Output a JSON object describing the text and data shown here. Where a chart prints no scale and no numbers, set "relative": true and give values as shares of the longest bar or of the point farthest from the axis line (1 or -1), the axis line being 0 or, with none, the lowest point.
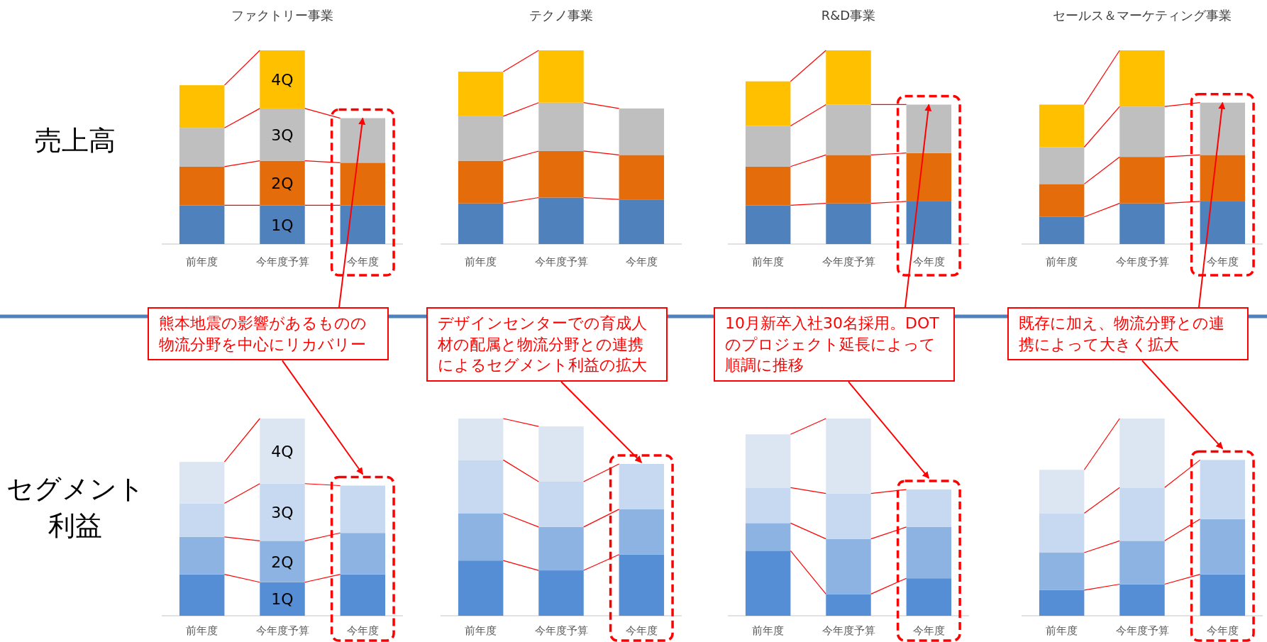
{
  "chart_data": [
    {
      "type": "bar",
      "stacked": true,
      "relative": true,
      "title": "ファクトリー事業",
      "ylabel": "売上高",
      "categories": [
        "前年度",
        "今年度予算",
        "今年度"
      ],
      "series": [
        {
          "name": "1Q",
          "color": "#4f81bd",
          "values": [
            0.2,
            0.2,
            0.2
          ]
        },
        {
          "name": "2Q",
          "color": "#e46c0a",
          "values": [
            0.2,
            0.23,
            0.22
          ]
        },
        {
          "name": "3Q",
          "color": "#bfbfbf",
          "values": [
            0.2,
            0.27,
            0.23
          ]
        },
        {
          "name": "4Q",
          "color": "#ffc000",
          "values": [
            0.22,
            0.3,
            null
          ]
        }
      ],
      "annotations": [
        {
          "text": "熊本地震の影響があるものの物流分野を中心にリカバリー",
          "x": "今年度",
          "y": 0.65
        }
      ]
    },
    {
      "type": "bar",
      "stacked": true,
      "relative": true,
      "title": "テクノ事業",
      "categories": [
        "前年度",
        "今年度予算",
        "今年度"
      ],
      "series": [
        {
          "color": "#4f81bd",
          "values": [
            0.21,
            0.24,
            0.23
          ]
        },
        {
          "color": "#e46c0a",
          "values": [
            0.22,
            0.24,
            0.23
          ]
        },
        {
          "color": "#bfbfbf",
          "values": [
            0.23,
            0.25,
            0.24
          ]
        },
        {
          "color": "#ffc000",
          "values": [
            0.23,
            0.27,
            null
          ]
        }
      ]
    },
    {
      "type": "bar",
      "stacked": true,
      "relative": true,
      "title": "R&D事業",
      "categories": [
        "前年度",
        "今年度予算",
        "今年度"
      ],
      "series": [
        {
          "color": "#4f81bd",
          "values": [
            0.2,
            0.21,
            0.22
          ]
        },
        {
          "color": "#e46c0a",
          "values": [
            0.2,
            0.25,
            0.25
          ]
        },
        {
          "color": "#bfbfbf",
          "values": [
            0.21,
            0.26,
            0.25
          ]
        },
        {
          "color": "#ffc000",
          "values": [
            0.23,
            0.28,
            null
          ]
        }
      ],
      "annotations": [
        {
          "text": "10月新卒入社30名採用。DOTのプロジェクト延長によって順調に推移",
          "x": "今年度",
          "y": 0.72
        }
      ]
    },
    {
      "type": "bar",
      "stacked": true,
      "relative": true,
      "title": "セールス＆マーケティング事業",
      "categories": [
        "前年度",
        "今年度予算",
        "今年度"
      ],
      "series": [
        {
          "color": "#4f81bd",
          "values": [
            0.14,
            0.21,
            0.22
          ]
        },
        {
          "color": "#e46c0a",
          "values": [
            0.17,
            0.24,
            0.24
          ]
        },
        {
          "color": "#bfbfbf",
          "values": [
            0.19,
            0.26,
            0.27
          ]
        },
        {
          "color": "#ffc000",
          "values": [
            0.22,
            0.29,
            null
          ]
        }
      ],
      "annotations": [
        {
          "text": "既存に加え、物流分野との連携によって大きく拡大",
          "x": "今年度",
          "y": 0.73
        }
      ]
    },
    {
      "type": "bar",
      "stacked": true,
      "relative": true,
      "ylabel": "セグメント利益",
      "categories": [
        "前年度",
        "今年度予算",
        "今年度"
      ],
      "series": [
        {
          "name": "1Q",
          "color": "#558ed5",
          "values": [
            0.21,
            0.17,
            0.21
          ]
        },
        {
          "name": "2Q",
          "color": "#8db3e2",
          "values": [
            0.19,
            0.21,
            0.21
          ]
        },
        {
          "name": "3Q",
          "color": "#c6d9f1",
          "values": [
            0.17,
            0.29,
            0.24
          ]
        },
        {
          "name": "4Q",
          "color": "#dce6f2",
          "values": [
            0.21,
            0.33,
            null
          ]
        }
      ]
    },
    {
      "type": "bar",
      "stacked": true,
      "relative": true,
      "categories": [
        "前年度",
        "今年度予算",
        "今年度"
      ],
      "series": [
        {
          "color": "#558ed5",
          "values": [
            0.28,
            0.23,
            0.31
          ]
        },
        {
          "color": "#8db3e2",
          "values": [
            0.24,
            0.22,
            0.23
          ]
        },
        {
          "color": "#c6d9f1",
          "values": [
            0.27,
            0.23,
            0.23
          ]
        },
        {
          "color": "#dce6f2",
          "values": [
            0.21,
            0.28,
            null
          ]
        }
      ],
      "annotations": [
        {
          "text": "デザインセンターでの育成人材の配属と物流分野との連携によるセグメント利益の拡大",
          "x": "今年度",
          "y": 0.77
        }
      ]
    },
    {
      "type": "bar",
      "stacked": true,
      "relative": true,
      "categories": [
        "前年度",
        "今年度予算",
        "今年度"
      ],
      "series": [
        {
          "color": "#558ed5",
          "values": [
            0.33,
            0.11,
            0.19
          ]
        },
        {
          "color": "#8db3e2",
          "values": [
            0.14,
            0.28,
            0.26
          ]
        },
        {
          "color": "#c6d9f1",
          "values": [
            0.18,
            0.23,
            0.19
          ]
        },
        {
          "color": "#dce6f2",
          "values": [
            0.27,
            0.38,
            null
          ]
        }
      ]
    },
    {
      "type": "bar",
      "stacked": true,
      "relative": true,
      "categories": [
        "前年度",
        "今年度予算",
        "今年度"
      ],
      "series": [
        {
          "color": "#558ed5",
          "values": [
            0.13,
            0.16,
            0.21
          ]
        },
        {
          "color": "#8db3e2",
          "values": [
            0.19,
            0.22,
            0.28
          ]
        },
        {
          "color": "#c6d9f1",
          "values": [
            0.2,
            0.27,
            0.3
          ]
        },
        {
          "color": "#dce6f2",
          "values": [
            0.22,
            0.35,
            null
          ]
        }
      ]
    }
  ]
}
